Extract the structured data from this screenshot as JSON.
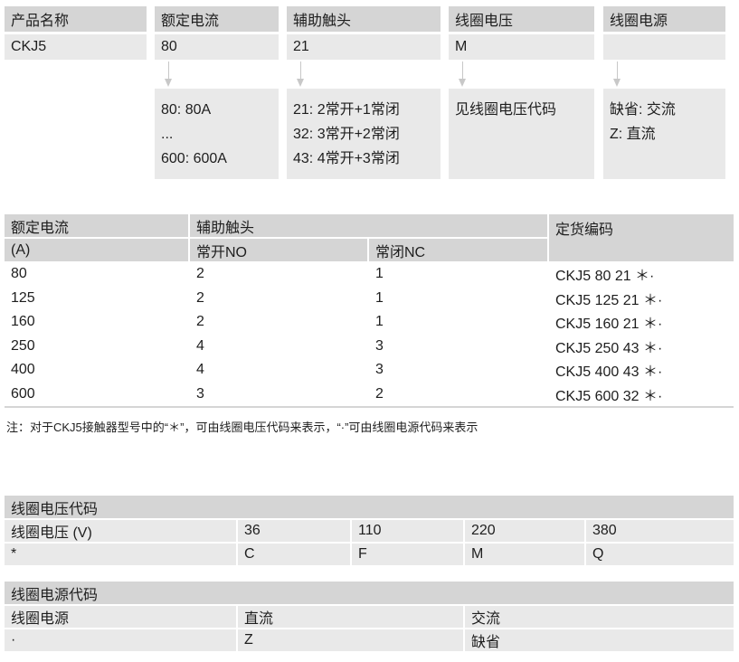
{
  "code_breakdown": {
    "headers": [
      "产品名称",
      "额定电流",
      "辅助触头",
      "线圈电压",
      "线圈电源"
    ],
    "values": [
      "CKJ5",
      "80",
      "21",
      "M",
      ""
    ],
    "descriptions": [
      [
        "80: 80A",
        "...",
        "600: 600A"
      ],
      [
        "21: 2常开+1常闭",
        "32: 3常开+2常闭",
        "43: 4常开+3常闭"
      ],
      [
        "见线圈电压代码"
      ],
      [
        "缺省: 交流",
        "Z: 直流"
      ]
    ]
  },
  "order_table": {
    "col1_header": "额定电流",
    "col1_unit": "(A)",
    "aux_header": "辅助触头",
    "no_header": "常开NO",
    "nc_header": "常闭NC",
    "code_header": "定货编码",
    "rows": [
      {
        "current": "80",
        "no": "2",
        "nc": "1",
        "code": "CKJ5 80 21 ＊·"
      },
      {
        "current": "125",
        "no": "2",
        "nc": "1",
        "code": "CKJ5 125 21 ＊·"
      },
      {
        "current": "160",
        "no": "2",
        "nc": "1",
        "code": "CKJ5 160 21 ＊·"
      },
      {
        "current": "250",
        "no": "4",
        "nc": "3",
        "code": "CKJ5 250 43 ＊·"
      },
      {
        "current": "400",
        "no": "4",
        "nc": "3",
        "code": "CKJ5 400 43 ＊·"
      },
      {
        "current": "600",
        "no": "3",
        "nc": "2",
        "code": "CKJ5 600 32 ＊·"
      }
    ],
    "note": "注：对于CKJ5接触器型号中的“＊”，可由线圈电压代码来表示，“·”可由线圈电源代码来表示"
  },
  "voltage_table": {
    "title": "线圈电压代码",
    "row1": [
      "线圈电压 (V)",
      "36",
      "110",
      "220",
      "380"
    ],
    "row2": [
      "*",
      "C",
      "F",
      "M",
      "Q"
    ]
  },
  "power_table": {
    "title": "线圈电源代码",
    "row1": [
      "线圈电源",
      "直流",
      "交流"
    ],
    "row2": [
      "·",
      "Z",
      "缺省"
    ]
  }
}
